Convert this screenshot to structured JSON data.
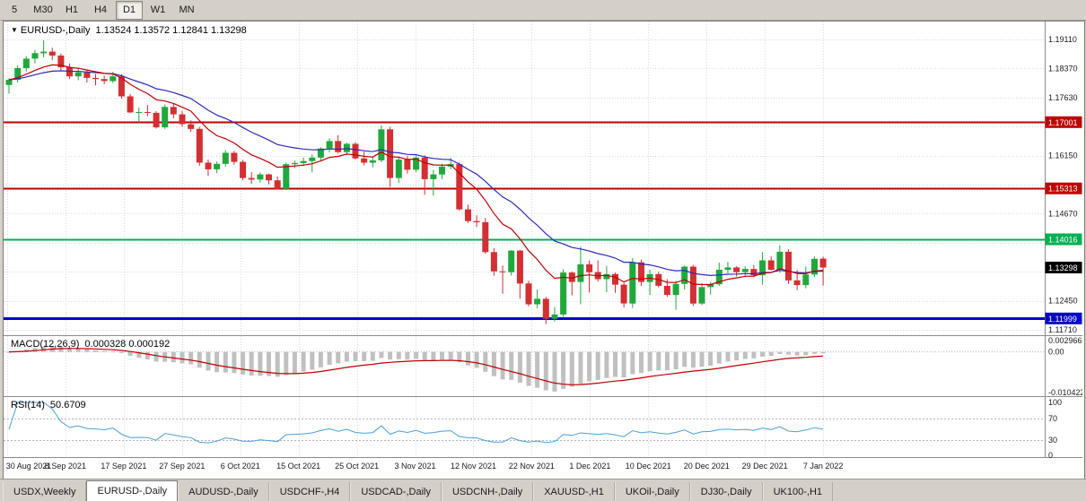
{
  "toolbar": {
    "timeframes": [
      {
        "label": "5",
        "active": false
      },
      {
        "label": "M30",
        "active": false
      },
      {
        "label": "H1",
        "active": false
      },
      {
        "label": "H4",
        "active": false
      },
      {
        "label": "D1",
        "active": true
      },
      {
        "label": "W1",
        "active": false
      },
      {
        "label": "MN",
        "active": false
      }
    ]
  },
  "icons": {
    "chart_collapse": "▼"
  },
  "chart": {
    "title": "EURUSD-,Daily",
    "quote": "1.13524 1.13572 1.12841 1.13298"
  },
  "price_axis": {
    "top_value": 1.1911,
    "step": 0.0074,
    "tick_count": 11,
    "decimals": 5
  },
  "hlines": [
    {
      "value": 1.17001,
      "label": "1.17001",
      "color": "#C00000",
      "width": 2
    },
    {
      "value": 1.15313,
      "label": "1.15313",
      "color": "#C00000",
      "width": 2
    },
    {
      "value": 1.14016,
      "label": "1.14016",
      "color": "#00B050",
      "width": 2
    },
    {
      "value": 1.11999,
      "label": "1.11999",
      "color": "#0000C8",
      "width": 3
    }
  ],
  "current_price": {
    "value": 1.13298,
    "label": "1.13298",
    "color": "#000000"
  },
  "macd": {
    "label": "MACD(12,26,9)",
    "values": "0.000328 0.000192",
    "fast": 12,
    "slow": 26,
    "signal": 9,
    "axis_max": 0.002966,
    "axis_min": -0.010422,
    "axis_labels": [
      "0.002966",
      "0.00",
      "-0.010422"
    ],
    "histogram_color": "#C0C0C0",
    "signal_color": "#C00000"
  },
  "rsi": {
    "label": "RSI(14)",
    "value": "50.6709",
    "period": 14,
    "axis_labels": [
      "100",
      "70",
      "30",
      "0"
    ],
    "levels": [
      70,
      30
    ],
    "line_color": "#4AA0DC"
  },
  "tabs": [
    {
      "label": "USDX,Weekly",
      "active": false
    },
    {
      "label": "EURUSD-,Daily",
      "active": true
    },
    {
      "label": "AUDUSD-,Daily",
      "active": false
    },
    {
      "label": "USDCHF-,H4",
      "active": false
    },
    {
      "label": "USDCAD-,Daily",
      "active": false
    },
    {
      "label": "USDCNH-,Daily",
      "active": false
    },
    {
      "label": "XAUUSD-,H1",
      "active": false
    },
    {
      "label": "UKOil-,Daily",
      "active": false
    },
    {
      "label": "DJ30-,Daily",
      "active": false
    },
    {
      "label": "UK100-,H1",
      "active": false
    }
  ],
  "chart_data": {
    "type": "candlestick",
    "symbol": "EURUSD-",
    "timeframe": "Daily",
    "title": "EURUSD-,Daily",
    "x_labels": [
      "30 Aug 2021",
      "8 Sep 2021",
      "17 Sep 2021",
      "27 Sep 2021",
      "6 Oct 2021",
      "15 Oct 2021",
      "25 Oct 2021",
      "3 Nov 2021",
      "12 Nov 2021",
      "22 Nov 2021",
      "1 Dec 2021",
      "10 Dec 2021",
      "20 Dec 2021",
      "29 Dec 2021",
      "7 Jan 2022"
    ],
    "colors": {
      "up": "#21A83C",
      "down": "#D42F33"
    },
    "overlays": [
      {
        "name": "ma-slow",
        "period": 21,
        "color": "#2B2BB8"
      },
      {
        "name": "ma-fast",
        "period": 10,
        "color": "#C00000"
      }
    ],
    "ohlc": [
      [
        1.1795,
        1.1812,
        1.1773,
        1.1808
      ],
      [
        1.1808,
        1.1845,
        1.1801,
        1.1838
      ],
      [
        1.1838,
        1.1868,
        1.1829,
        1.1862
      ],
      [
        1.1862,
        1.1884,
        1.185,
        1.1876
      ],
      [
        1.1876,
        1.1909,
        1.1865,
        1.188
      ],
      [
        1.188,
        1.189,
        1.1858,
        1.187
      ],
      [
        1.187,
        1.1875,
        1.1831,
        1.184
      ],
      [
        1.184,
        1.185,
        1.181,
        1.1817
      ],
      [
        1.1817,
        1.1838,
        1.1807,
        1.1827
      ],
      [
        1.1827,
        1.1833,
        1.1801,
        1.1813
      ],
      [
        1.1813,
        1.1823,
        1.1794,
        1.181
      ],
      [
        1.181,
        1.1819,
        1.1797,
        1.1805
      ],
      [
        1.1805,
        1.1828,
        1.18,
        1.1817
      ],
      [
        1.1817,
        1.1822,
        1.176,
        1.1766
      ],
      [
        1.1766,
        1.1772,
        1.1724,
        1.1725
      ],
      [
        1.1725,
        1.1737,
        1.17,
        1.1726
      ],
      [
        1.1726,
        1.1744,
        1.1715,
        1.1724
      ],
      [
        1.1724,
        1.1728,
        1.1684,
        1.1687
      ],
      [
        1.1687,
        1.1745,
        1.1683,
        1.1739
      ],
      [
        1.1739,
        1.1748,
        1.171,
        1.172
      ],
      [
        1.172,
        1.1728,
        1.1689,
        1.1695
      ],
      [
        1.1695,
        1.1705,
        1.1675,
        1.1683
      ],
      [
        1.1683,
        1.1688,
        1.1589,
        1.1597
      ],
      [
        1.1597,
        1.1605,
        1.1563,
        1.158
      ],
      [
        1.158,
        1.16,
        1.157,
        1.1594
      ],
      [
        1.1594,
        1.1629,
        1.1586,
        1.1622
      ],
      [
        1.1622,
        1.1627,
        1.1592,
        1.1599
      ],
      [
        1.1599,
        1.1604,
        1.1552,
        1.1558
      ],
      [
        1.1558,
        1.1573,
        1.1543,
        1.1554
      ],
      [
        1.1554,
        1.1572,
        1.1546,
        1.1567
      ],
      [
        1.1567,
        1.1569,
        1.1542,
        1.1552
      ],
      [
        1.1552,
        1.1562,
        1.1529,
        1.153
      ],
      [
        1.153,
        1.1597,
        1.1527,
        1.1593
      ],
      [
        1.1593,
        1.1602,
        1.1583,
        1.1596
      ],
      [
        1.1596,
        1.161,
        1.1588,
        1.1601
      ],
      [
        1.1601,
        1.1618,
        1.1572,
        1.161
      ],
      [
        1.161,
        1.1636,
        1.1603,
        1.1633
      ],
      [
        1.1633,
        1.1659,
        1.1623,
        1.1652
      ],
      [
        1.1652,
        1.1667,
        1.1621,
        1.1624
      ],
      [
        1.1624,
        1.1648,
        1.1617,
        1.1645
      ],
      [
        1.1645,
        1.1649,
        1.1605,
        1.1608
      ],
      [
        1.1608,
        1.1625,
        1.159,
        1.1597
      ],
      [
        1.1597,
        1.161,
        1.1585,
        1.1603
      ],
      [
        1.1603,
        1.1692,
        1.1598,
        1.1682
      ],
      [
        1.1682,
        1.1688,
        1.1535,
        1.1558
      ],
      [
        1.1558,
        1.161,
        1.1545,
        1.1605
      ],
      [
        1.1605,
        1.1614,
        1.1569,
        1.1579
      ],
      [
        1.1579,
        1.1616,
        1.1573,
        1.161
      ],
      [
        1.161,
        1.1616,
        1.1515,
        1.1555
      ],
      [
        1.1555,
        1.1579,
        1.1513,
        1.1567
      ],
      [
        1.1567,
        1.1594,
        1.1555,
        1.1587
      ],
      [
        1.1587,
        1.1609,
        1.158,
        1.1593
      ],
      [
        1.1593,
        1.1597,
        1.1475,
        1.1478
      ],
      [
        1.1478,
        1.149,
        1.1443,
        1.1448
      ],
      [
        1.1448,
        1.1463,
        1.1433,
        1.1445
      ],
      [
        1.1445,
        1.1456,
        1.1365,
        1.1369
      ],
      [
        1.1369,
        1.1379,
        1.1309,
        1.132
      ],
      [
        1.132,
        1.1335,
        1.1263,
        1.1318
      ],
      [
        1.1318,
        1.1374,
        1.1309,
        1.1373
      ],
      [
        1.1373,
        1.1375,
        1.125,
        1.1289
      ],
      [
        1.1289,
        1.1296,
        1.1231,
        1.1236
      ],
      [
        1.1236,
        1.1274,
        1.1226,
        1.125
      ],
      [
        1.125,
        1.1255,
        1.1186,
        1.1199
      ],
      [
        1.1199,
        1.1229,
        1.1192,
        1.121
      ],
      [
        1.121,
        1.1325,
        1.1204,
        1.1317
      ],
      [
        1.1317,
        1.132,
        1.1259,
        1.1293
      ],
      [
        1.1293,
        1.1383,
        1.1236,
        1.1338
      ],
      [
        1.1338,
        1.1348,
        1.1266,
        1.1318
      ],
      [
        1.1318,
        1.1348,
        1.1294,
        1.13
      ],
      [
        1.13,
        1.1334,
        1.1267,
        1.1313
      ],
      [
        1.1313,
        1.1317,
        1.1265,
        1.1286
      ],
      [
        1.1286,
        1.1291,
        1.1228,
        1.1238
      ],
      [
        1.1238,
        1.1354,
        1.1227,
        1.1343
      ],
      [
        1.1343,
        1.135,
        1.1283,
        1.1293
      ],
      [
        1.1293,
        1.1324,
        1.126,
        1.1313
      ],
      [
        1.1313,
        1.1319,
        1.1279,
        1.1283
      ],
      [
        1.1283,
        1.13,
        1.1255,
        1.126
      ],
      [
        1.126,
        1.1296,
        1.1222,
        1.1288
      ],
      [
        1.1288,
        1.1335,
        1.1274,
        1.1332
      ],
      [
        1.1332,
        1.1336,
        1.1232,
        1.1238
      ],
      [
        1.1238,
        1.129,
        1.1234,
        1.128
      ],
      [
        1.128,
        1.1292,
        1.1261,
        1.1287
      ],
      [
        1.1287,
        1.1342,
        1.1283,
        1.1324
      ],
      [
        1.1324,
        1.1344,
        1.1315,
        1.133
      ],
      [
        1.133,
        1.1333,
        1.1307,
        1.1318
      ],
      [
        1.1318,
        1.1333,
        1.1306,
        1.1326
      ],
      [
        1.1326,
        1.1336,
        1.1305,
        1.131
      ],
      [
        1.131,
        1.1369,
        1.1286,
        1.1348
      ],
      [
        1.1348,
        1.1358,
        1.1322,
        1.1324
      ],
      [
        1.1324,
        1.1386,
        1.1316,
        1.137
      ],
      [
        1.137,
        1.1376,
        1.1288,
        1.1297
      ],
      [
        1.1297,
        1.1323,
        1.1272,
        1.1285
      ],
      [
        1.1285,
        1.1332,
        1.1277,
        1.1312
      ],
      [
        1.1312,
        1.1358,
        1.1306,
        1.1352
      ],
      [
        1.13524,
        1.13572,
        1.12841,
        1.13298
      ]
    ]
  }
}
